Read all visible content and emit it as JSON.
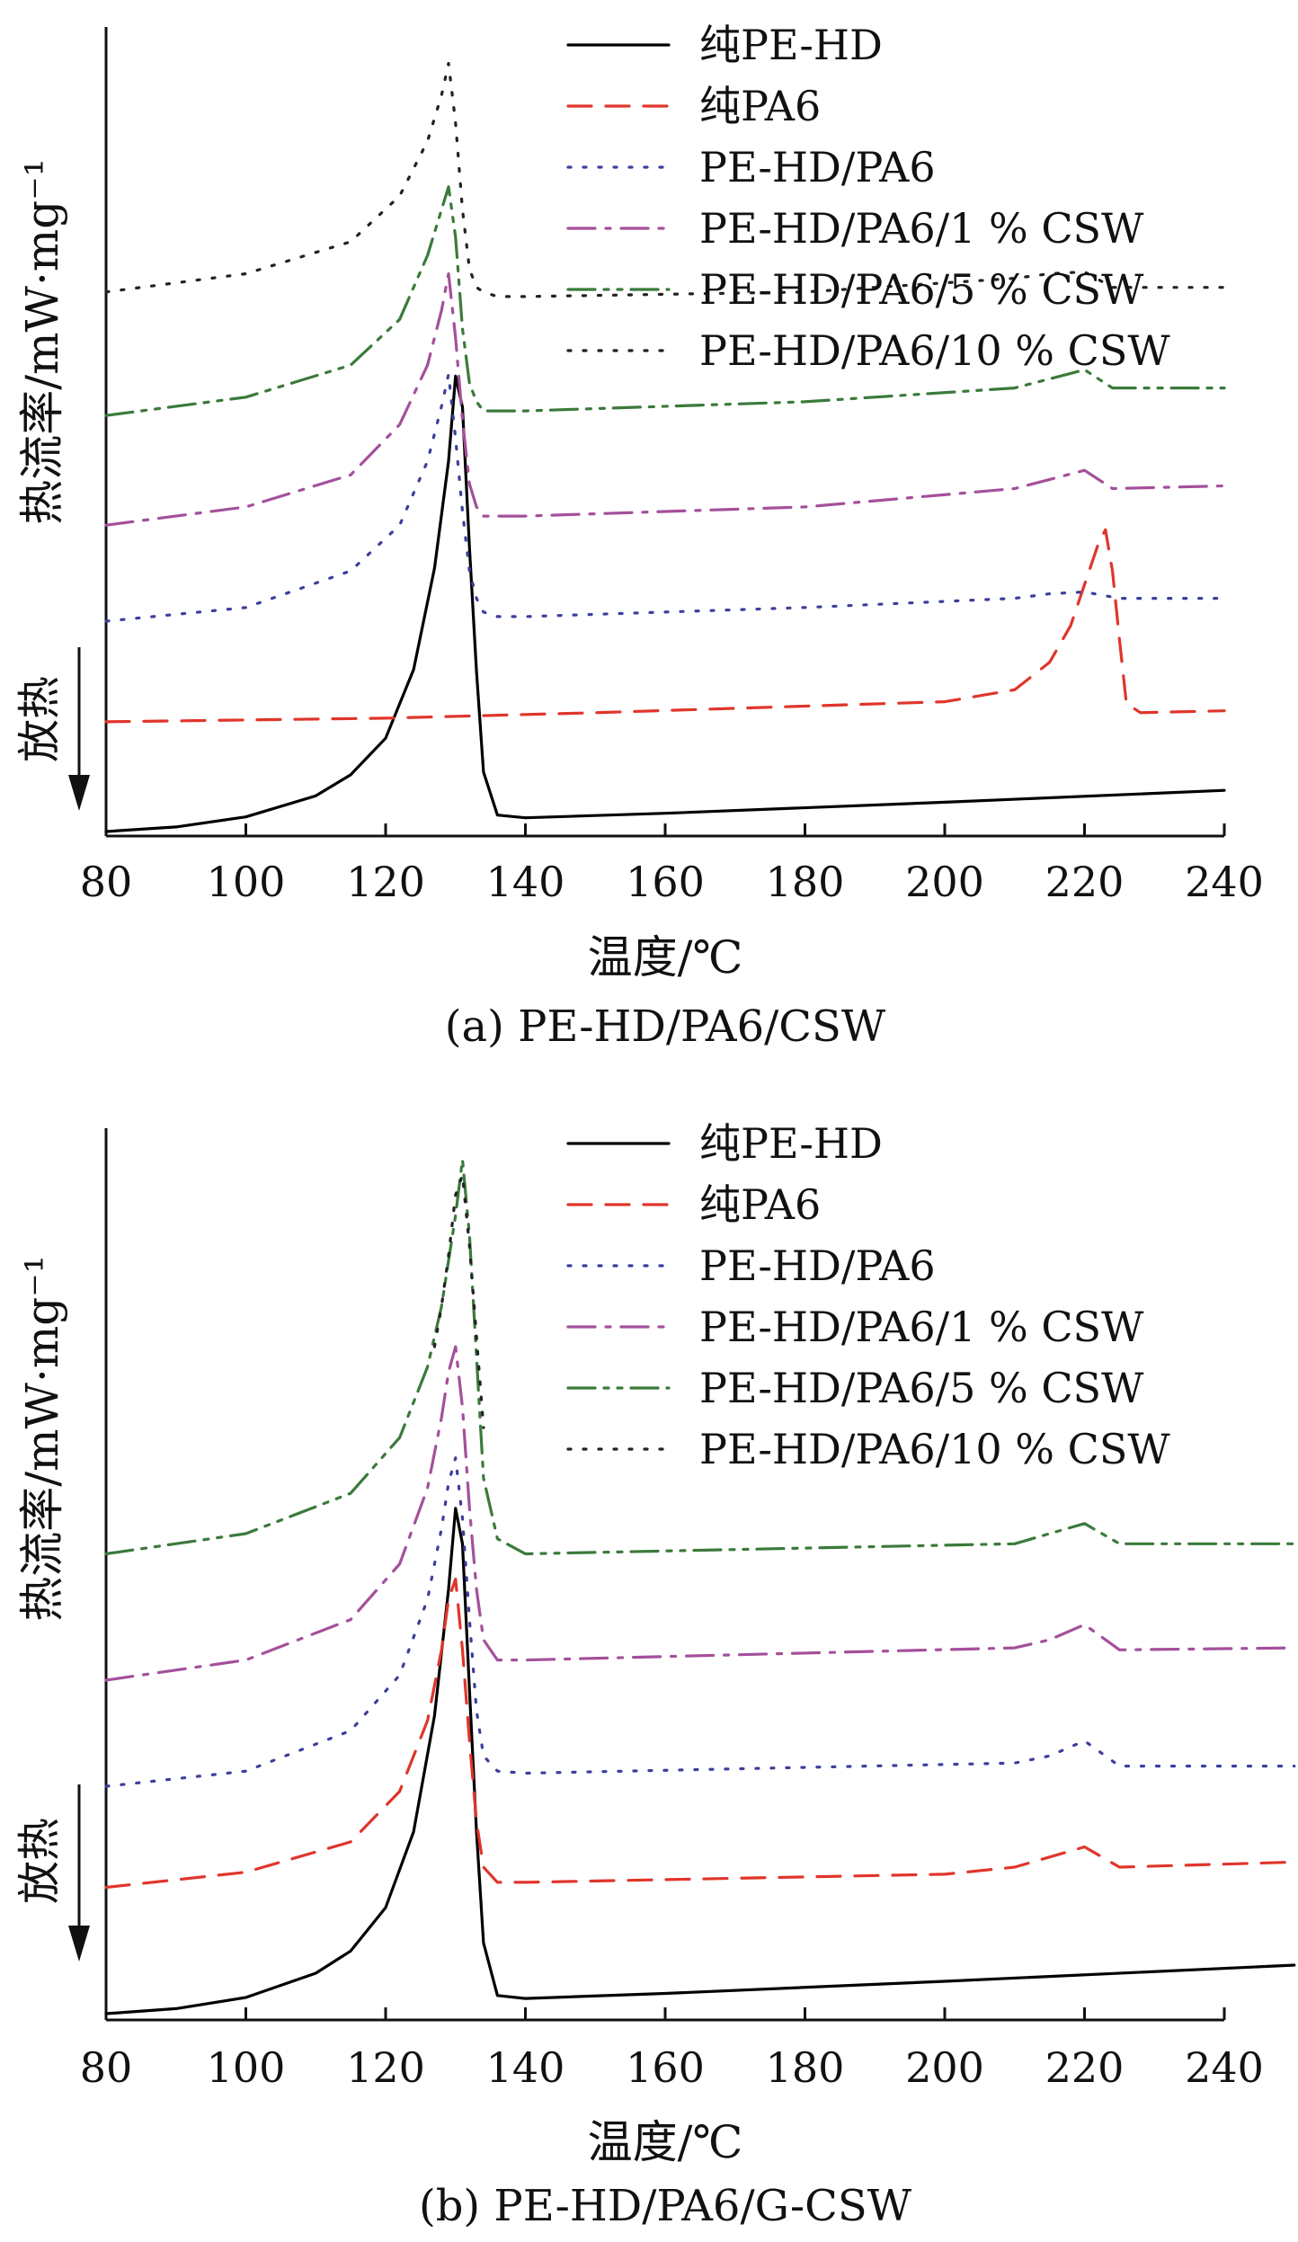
{
  "chart_data": [
    {
      "type": "line",
      "caption": "(a) PE-HD/PA6/CSW",
      "xlabel": "温度/℃",
      "ylabel": "热流率/mW·mg⁻¹",
      "exo_label": "放热",
      "xlim": [
        80,
        240
      ],
      "xticks": [
        "80",
        "100",
        "120",
        "140",
        "160",
        "180",
        "200",
        "220",
        "240"
      ],
      "yticks": [],
      "grid": false,
      "legend_position": "top-right",
      "series": [
        {
          "name": "纯PE-HD",
          "color": "#000000",
          "dash": "solid",
          "x": [
            80,
            90,
            100,
            110,
            115,
            120,
            124,
            127,
            129,
            130,
            131,
            132,
            133,
            134,
            136,
            140,
            160,
            200,
            240
          ],
          "y": [
            0,
            0.05,
            0.16,
            0.39,
            0.62,
            1.02,
            1.77,
            2.88,
            4.05,
            4.98,
            4.64,
            3.1,
            1.75,
            0.65,
            0.18,
            0.15,
            0.2,
            0.32,
            0.45
          ]
        },
        {
          "name": "纯PA6",
          "color": "#e0352b",
          "dash": "dashed",
          "x": [
            80,
            120,
            150,
            200,
            210,
            215,
            218,
            220,
            222,
            223,
            224,
            225,
            226,
            228,
            240
          ],
          "y": [
            1.2,
            1.24,
            1.3,
            1.42,
            1.55,
            1.85,
            2.25,
            2.7,
            3.15,
            3.3,
            2.85,
            2.1,
            1.4,
            1.3,
            1.32
          ]
        },
        {
          "name": "PE-HD/PA6",
          "color": "#3b3f9c",
          "dash": "dotted",
          "x": [
            80,
            100,
            115,
            122,
            126,
            128,
            129,
            130,
            131,
            132,
            133,
            134,
            136,
            140,
            180,
            210,
            215,
            220,
            225,
            240
          ],
          "y": [
            2.3,
            2.45,
            2.85,
            3.35,
            4.05,
            4.65,
            5.0,
            4.3,
            3.5,
            2.85,
            2.55,
            2.4,
            2.35,
            2.35,
            2.45,
            2.55,
            2.6,
            2.62,
            2.55,
            2.55
          ]
        },
        {
          "name": "PE-HD/PA6/1 % CSW",
          "color": "#a4509b",
          "dash": "dashdot",
          "x": [
            80,
            100,
            115,
            122,
            126,
            128,
            129,
            130,
            131,
            132,
            133,
            134,
            136,
            140,
            180,
            210,
            215,
            220,
            224,
            240
          ],
          "y": [
            3.35,
            3.55,
            3.9,
            4.45,
            5.1,
            5.7,
            6.1,
            5.4,
            4.5,
            3.8,
            3.55,
            3.45,
            3.45,
            3.45,
            3.55,
            3.75,
            3.85,
            3.95,
            3.75,
            3.78
          ]
        },
        {
          "name": "PE-HD/PA6/5 % CSW",
          "color": "#3b7a3b",
          "dash": "dashdotdot",
          "x": [
            80,
            100,
            115,
            122,
            126,
            128,
            129,
            130,
            131,
            132,
            133,
            134,
            136,
            140,
            180,
            210,
            215,
            220,
            224,
            240
          ],
          "y": [
            4.55,
            4.75,
            5.1,
            5.6,
            6.3,
            6.8,
            7.05,
            6.5,
            5.5,
            4.9,
            4.7,
            4.6,
            4.6,
            4.6,
            4.7,
            4.85,
            4.95,
            5.05,
            4.85,
            4.85
          ]
        },
        {
          "name": "PE-HD/PA6/10 % CSW",
          "color": "#222222",
          "dash": "dotted",
          "x": [
            80,
            100,
            115,
            122,
            126,
            128,
            129,
            130,
            131,
            132,
            133,
            134,
            136,
            140,
            180,
            210,
            215,
            220,
            224,
            240
          ],
          "y": [
            5.9,
            6.1,
            6.45,
            6.95,
            7.55,
            8.05,
            8.4,
            7.75,
            6.8,
            6.15,
            5.95,
            5.9,
            5.85,
            5.85,
            5.9,
            6.05,
            6.1,
            6.12,
            5.95,
            5.95
          ]
        }
      ]
    },
    {
      "type": "line",
      "caption": "(b) PE-HD/PA6/G-CSW",
      "xlabel": "温度/℃",
      "ylabel": "热流率/mW·mg⁻¹",
      "exo_label": "放热",
      "xlim": [
        80,
        240
      ],
      "xticks": [
        "80",
        "100",
        "120",
        "140",
        "160",
        "180",
        "200",
        "220",
        "240"
      ],
      "yticks": [],
      "grid": false,
      "legend_position": "top-right",
      "series": [
        {
          "name": "纯PE-HD",
          "color": "#000000",
          "dash": "solid",
          "x": [
            80,
            90,
            100,
            110,
            115,
            120,
            124,
            127,
            129,
            130,
            131,
            132,
            133,
            134,
            136,
            140,
            160,
            200,
            250
          ],
          "y": [
            0,
            0.05,
            0.16,
            0.4,
            0.62,
            1.05,
            1.8,
            2.95,
            4.2,
            5.0,
            4.65,
            3.2,
            1.8,
            0.7,
            0.18,
            0.15,
            0.2,
            0.32,
            0.48
          ]
        },
        {
          "name": "纯PA6",
          "color": "#e0352b",
          "dash": "dashed",
          "x": [
            80,
            100,
            115,
            122,
            126,
            128,
            129,
            130,
            131,
            132,
            133,
            134,
            136,
            140,
            200,
            210,
            215,
            220,
            225,
            250
          ],
          "y": [
            1.25,
            1.4,
            1.7,
            2.2,
            2.9,
            3.6,
            4.1,
            4.3,
            3.6,
            2.7,
            1.9,
            1.45,
            1.3,
            1.3,
            1.38,
            1.45,
            1.55,
            1.65,
            1.45,
            1.5
          ]
        },
        {
          "name": "PE-HD/PA6",
          "color": "#3b3f9c",
          "dash": "dotted",
          "x": [
            80,
            100,
            115,
            122,
            126,
            128,
            129,
            130,
            131,
            132,
            133,
            134,
            136,
            140,
            210,
            215,
            220,
            225,
            250
          ],
          "y": [
            2.25,
            2.4,
            2.8,
            3.35,
            4.1,
            4.8,
            5.25,
            5.5,
            4.9,
            3.9,
            3.0,
            2.55,
            2.4,
            2.38,
            2.48,
            2.55,
            2.7,
            2.45,
            2.45
          ]
        },
        {
          "name": "PE-HD/PA6/1 % CSW",
          "color": "#a4509b",
          "dash": "dashdot",
          "x": [
            80,
            100,
            115,
            122,
            126,
            128,
            129,
            130,
            131,
            132,
            133,
            134,
            136,
            140,
            210,
            215,
            220,
            225,
            250
          ],
          "y": [
            3.3,
            3.5,
            3.9,
            4.45,
            5.2,
            5.9,
            6.35,
            6.6,
            6.0,
            5.0,
            4.2,
            3.7,
            3.5,
            3.5,
            3.62,
            3.7,
            3.85,
            3.6,
            3.62
          ]
        },
        {
          "name": "PE-HD/PA6/5 % CSW",
          "color": "#3b7a3b",
          "dash": "dashdotdot",
          "x": [
            80,
            100,
            115,
            122,
            126,
            128,
            129,
            130,
            131,
            132,
            133,
            134,
            136,
            140,
            210,
            215,
            220,
            225,
            250
          ],
          "y": [
            4.55,
            4.75,
            5.15,
            5.7,
            6.4,
            7.0,
            7.45,
            7.9,
            8.45,
            7.7,
            6.5,
            5.3,
            4.7,
            4.55,
            4.65,
            4.75,
            4.85,
            4.65,
            4.65
          ]
        },
        {
          "name": "PE-HD/PA6/10 % CSW",
          "color": "#222222",
          "dash": "dotted",
          "x": [
            127,
            128,
            129,
            130,
            131,
            132,
            133,
            134
          ],
          "y": [
            6.6,
            7.0,
            7.5,
            8.1,
            8.3,
            7.6,
            6.7,
            5.8
          ]
        }
      ]
    }
  ]
}
